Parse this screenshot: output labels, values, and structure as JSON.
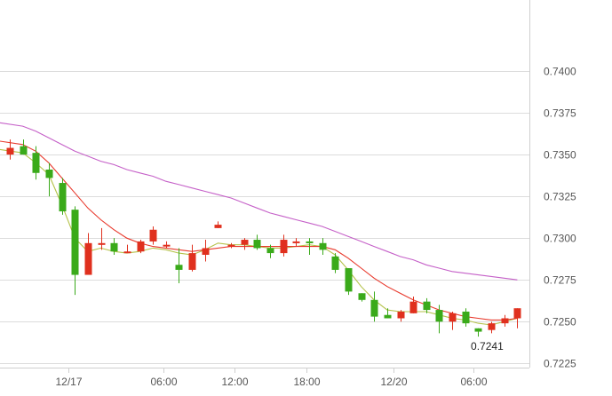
{
  "chart_data": {
    "type": "candlestick",
    "y_ticks": [
      "0.7400",
      "0.7375",
      "0.7350",
      "0.7325",
      "0.7300",
      "0.7275",
      "0.7250",
      "0.7225"
    ],
    "x_ticks": [
      "12/17",
      "06:00",
      "12:00",
      "18:00",
      "12/20",
      "06:00"
    ],
    "ylim": [
      0.72225,
      0.74425
    ],
    "grid": true,
    "colors": {
      "up": "#e0301e",
      "down": "#3aaa1a",
      "ma_fast": "#b5c24a",
      "ma_mid": "#e8392c",
      "ma_slow": "#c560c8",
      "grid": "#dcdcdc"
    },
    "candles": [
      {
        "o": 0.735,
        "h": 0.7359,
        "l": 0.7347,
        "c": 0.7354
      },
      {
        "o": 0.7355,
        "h": 0.7359,
        "l": 0.735,
        "c": 0.735
      },
      {
        "o": 0.7351,
        "h": 0.7355,
        "l": 0.7335,
        "c": 0.7339
      },
      {
        "o": 0.7341,
        "h": 0.7345,
        "l": 0.7325,
        "c": 0.7336
      },
      {
        "o": 0.7333,
        "h": 0.7336,
        "l": 0.7314,
        "c": 0.7316
      },
      {
        "o": 0.7317,
        "h": 0.7319,
        "l": 0.7266,
        "c": 0.7278
      },
      {
        "o": 0.7278,
        "h": 0.7303,
        "l": 0.7278,
        "c": 0.7297
      },
      {
        "o": 0.7296,
        "h": 0.7306,
        "l": 0.7293,
        "c": 0.7297
      },
      {
        "o": 0.7297,
        "h": 0.73,
        "l": 0.729,
        "c": 0.7292
      },
      {
        "o": 0.7292,
        "h": 0.7296,
        "l": 0.7291,
        "c": 0.7292
      },
      {
        "o": 0.7292,
        "h": 0.7299,
        "l": 0.7291,
        "c": 0.7298
      },
      {
        "o": 0.7298,
        "h": 0.7307,
        "l": 0.7296,
        "c": 0.7305
      },
      {
        "o": 0.7296,
        "h": 0.7298,
        "l": 0.7294,
        "c": 0.7296
      },
      {
        "o": 0.7284,
        "h": 0.7294,
        "l": 0.7273,
        "c": 0.7281
      },
      {
        "o": 0.7281,
        "h": 0.7296,
        "l": 0.728,
        "c": 0.7291
      },
      {
        "o": 0.729,
        "h": 0.7299,
        "l": 0.7286,
        "c": 0.7294
      },
      {
        "o": 0.7306,
        "h": 0.731,
        "l": 0.7306,
        "c": 0.7308
      },
      {
        "o": 0.7296,
        "h": 0.7297,
        "l": 0.7294,
        "c": 0.7296
      },
      {
        "o": 0.7296,
        "h": 0.73,
        "l": 0.7293,
        "c": 0.7299
      },
      {
        "o": 0.7299,
        "h": 0.7302,
        "l": 0.7293,
        "c": 0.7294
      },
      {
        "o": 0.7294,
        "h": 0.7296,
        "l": 0.7288,
        "c": 0.7291
      },
      {
        "o": 0.7291,
        "h": 0.7302,
        "l": 0.7289,
        "c": 0.7299
      },
      {
        "o": 0.7297,
        "h": 0.73,
        "l": 0.7295,
        "c": 0.7298
      },
      {
        "o": 0.7298,
        "h": 0.73,
        "l": 0.729,
        "c": 0.7297
      },
      {
        "o": 0.7297,
        "h": 0.73,
        "l": 0.729,
        "c": 0.7293
      },
      {
        "o": 0.7289,
        "h": 0.7291,
        "l": 0.7279,
        "c": 0.7281
      },
      {
        "o": 0.7282,
        "h": 0.7282,
        "l": 0.7266,
        "c": 0.7268
      },
      {
        "o": 0.7267,
        "h": 0.7267,
        "l": 0.7262,
        "c": 0.7263
      },
      {
        "o": 0.7263,
        "h": 0.7268,
        "l": 0.725,
        "c": 0.7253
      },
      {
        "o": 0.7254,
        "h": 0.7258,
        "l": 0.7252,
        "c": 0.7252
      },
      {
        "o": 0.7252,
        "h": 0.7257,
        "l": 0.725,
        "c": 0.7256
      },
      {
        "o": 0.7255,
        "h": 0.7265,
        "l": 0.7255,
        "c": 0.7262
      },
      {
        "o": 0.7262,
        "h": 0.7264,
        "l": 0.7255,
        "c": 0.7257
      },
      {
        "o": 0.7257,
        "h": 0.726,
        "l": 0.7243,
        "c": 0.725
      },
      {
        "o": 0.725,
        "h": 0.7256,
        "l": 0.7245,
        "c": 0.7255
      },
      {
        "o": 0.7256,
        "h": 0.7258,
        "l": 0.7247,
        "c": 0.7249
      },
      {
        "o": 0.7246,
        "h": 0.7246,
        "l": 0.7241,
        "c": 0.7244
      },
      {
        "o": 0.7245,
        "h": 0.725,
        "l": 0.7243,
        "c": 0.7249
      },
      {
        "o": 0.7249,
        "h": 0.7254,
        "l": 0.7247,
        "c": 0.7252
      },
      {
        "o": 0.7252,
        "h": 0.7258,
        "l": 0.7246,
        "c": 0.7258
      }
    ],
    "moving_averages": [
      {
        "color": "#b5c24a",
        "values": [
          0.7353,
          0.7351,
          0.7345,
          0.7338,
          0.732,
          0.73,
          0.7292,
          0.7294,
          0.7292,
          0.7291,
          0.7292,
          0.7294,
          0.7293,
          0.7291,
          0.729,
          0.7293,
          0.7297,
          0.7296,
          0.7296,
          0.7295,
          0.7294,
          0.7294,
          0.7295,
          0.7296,
          0.7295,
          0.729,
          0.7281,
          0.7271,
          0.7263,
          0.7257,
          0.7256,
          0.7256,
          0.7256,
          0.7254,
          0.7252,
          0.7251,
          0.7249,
          0.7248,
          0.725,
          0.7252
        ]
      },
      {
        "color": "#e8392c",
        "values": [
          0.7358,
          0.7356,
          0.7352,
          0.7345,
          0.7336,
          0.7327,
          0.7318,
          0.7311,
          0.7305,
          0.73,
          0.7297,
          0.7295,
          0.7294,
          0.7293,
          0.7292,
          0.7293,
          0.7294,
          0.7295,
          0.7295,
          0.7295,
          0.7295,
          0.7295,
          0.7295,
          0.7295,
          0.7295,
          0.7293,
          0.7288,
          0.7282,
          0.7276,
          0.7271,
          0.7267,
          0.7263,
          0.726,
          0.7257,
          0.7255,
          0.7253,
          0.7252,
          0.7251,
          0.7251,
          0.7252
        ]
      },
      {
        "color": "#c560c8",
        "values": [
          0.7369,
          0.7367,
          0.7364,
          0.736,
          0.7356,
          0.7352,
          0.7349,
          0.7346,
          0.7344,
          0.7341,
          0.7339,
          0.7337,
          0.7334,
          0.7332,
          0.733,
          0.7328,
          0.7326,
          0.7324,
          0.7321,
          0.7318,
          0.7315,
          0.7313,
          0.7311,
          0.7309,
          0.7307,
          0.7304,
          0.7301,
          0.7298,
          0.7295,
          0.7292,
          0.7289,
          0.7287,
          0.7284,
          0.7282,
          0.728,
          0.7279,
          0.7278,
          0.7277,
          0.7276,
          0.7275
        ]
      }
    ],
    "x_tick_index": [
      4.5,
      11.8,
      17.3,
      22.8,
      29.5,
      35.6
    ],
    "annotations": [
      {
        "text": "0.7241",
        "candle": 36,
        "value": 0.7241
      }
    ]
  }
}
